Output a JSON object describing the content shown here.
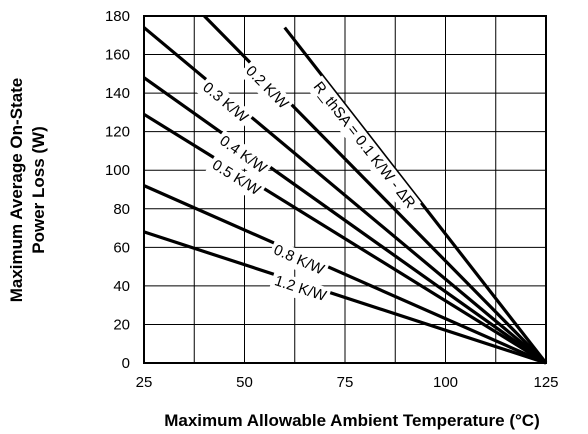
{
  "chart_data": {
    "type": "line",
    "xlabel": "Maximum Allowable Ambient Temperature (°C)",
    "ylabel_line1": "Maximum Average On-State",
    "ylabel_line2": "Power Loss (W)",
    "xlim": [
      25,
      125
    ],
    "ylim": [
      0,
      180
    ],
    "x_ticks": [
      25,
      50,
      75,
      100,
      125
    ],
    "y_ticks": [
      0,
      20,
      40,
      60,
      80,
      100,
      120,
      140,
      160,
      180
    ],
    "grid": true,
    "series": [
      {
        "name": "R_thSA = 0.1 K/W - ΔR",
        "x": [
          60,
          125
        ],
        "y": [
          174,
          0
        ]
      },
      {
        "name": "0.2 K/W",
        "x": [
          40,
          125
        ],
        "y": [
          180,
          0
        ]
      },
      {
        "name": "0.3 K/W",
        "x": [
          25,
          125
        ],
        "y": [
          174,
          0
        ]
      },
      {
        "name": "0.4 K/W",
        "x": [
          25,
          125
        ],
        "y": [
          148,
          0
        ]
      },
      {
        "name": "0.5 K/W",
        "x": [
          25,
          125
        ],
        "y": [
          129,
          0
        ]
      },
      {
        "name": "0.8 K/W",
        "x": [
          25,
          125
        ],
        "y": [
          92,
          0
        ]
      },
      {
        "name": "1.2 K/W",
        "x": [
          25,
          125
        ],
        "y": [
          68,
          0
        ]
      }
    ]
  }
}
